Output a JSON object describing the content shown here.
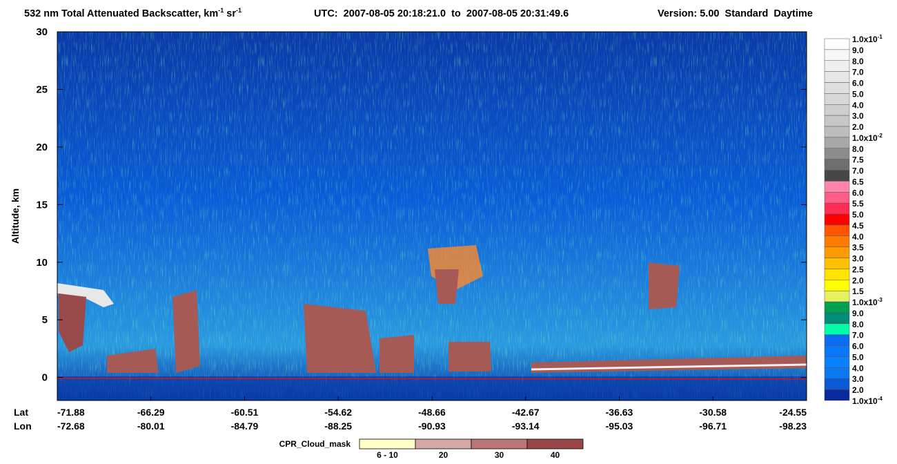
{
  "chart_data": {
    "type": "heatmap",
    "title": [
      "532 nm Total Attenuated Backscatter, km",
      "-1",
      " sr",
      "-1"
    ],
    "time_range": "UTC:  2007-08-05 20:18:21.0  to  2007-08-05 20:31:49.6",
    "version": "Version: 5.00  Standard  Daytime",
    "y_label": "Altitude, km",
    "ylim": [
      -2,
      30
    ],
    "yticks": [
      0,
      5,
      10,
      15,
      20,
      25,
      30
    ],
    "x_rows": [
      "Lat",
      "Lon"
    ],
    "categories": [
      "-71.88",
      "-66.29",
      "-60.51",
      "-54.62",
      "-48.66",
      "-42.67",
      "-36.63",
      "-30.58",
      "-24.55"
    ],
    "categories_lon": [
      "-72.68",
      "-80.01",
      "-84.79",
      "-88.25",
      "-90.93",
      "-93.14",
      "-95.03",
      "-96.71",
      "-98.23"
    ],
    "colorbar": {
      "labels": [
        {
          "text": "1.0x10",
          "sup": "-1"
        },
        "9.0",
        "8.0",
        "7.0",
        "6.0",
        "5.0",
        "4.0",
        "3.0",
        "2.0",
        {
          "text": "1.0x10",
          "sup": "-2"
        },
        "8.0",
        "7.5",
        "7.0",
        "6.5",
        "6.0",
        "5.5",
        "5.0",
        "4.5",
        "4.0",
        "3.5",
        "3.0",
        "2.5",
        "2.0",
        "1.5",
        {
          "text": "1.0x10",
          "sup": "-3"
        },
        "9.0",
        "8.0",
        "7.0",
        "6.0",
        "5.0",
        "4.0",
        "3.0",
        "2.0",
        {
          "text": "1.0x10",
          "sup": "-4"
        }
      ],
      "colors": [
        "#ffffff",
        "#f7f7f7",
        "#efefef",
        "#e7e7e7",
        "#dfdfdf",
        "#d7d7d7",
        "#cfcfcf",
        "#c7c7c7",
        "#bdbdbd",
        "#a8a8a8",
        "#8c8c8c",
        "#6e6e6e",
        "#474747",
        "#ff84ac",
        "#ff5c86",
        "#ff2c54",
        "#ff0000",
        "#ff5400",
        "#ff7c00",
        "#ff9a00",
        "#ffc000",
        "#ffe400",
        "#ffff00",
        "#e6f060",
        "#00a050",
        "#008c78",
        "#00ffaa",
        "#0a6cf0",
        "#0a76fa",
        "#0a80ff",
        "#0a78f0",
        "#0a5ad8",
        "#0a2a9c"
      ]
    },
    "cloud_mask": {
      "title": "CPR_Cloud_mask",
      "labels": [
        "6 - 10",
        "20",
        "30",
        "40"
      ],
      "colors": [
        "#ffffc6",
        "#d4a6a6",
        "#b87676",
        "#9a4646"
      ]
    }
  }
}
